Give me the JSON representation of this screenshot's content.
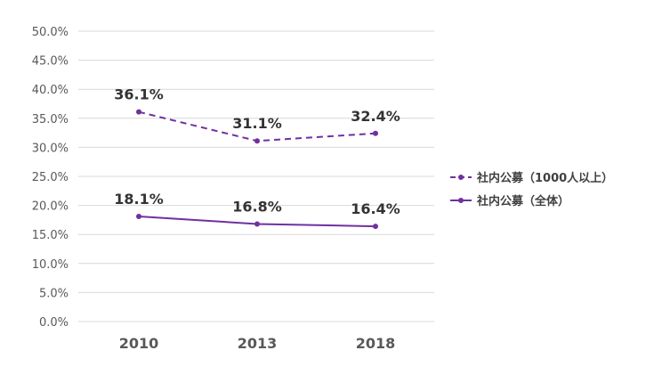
{
  "chart_data": {
    "type": "line",
    "categories": [
      "2010",
      "2013",
      "2018"
    ],
    "ylim": [
      0,
      50
    ],
    "yticks": [
      "0.0%",
      "5.0%",
      "10.0%",
      "15.0%",
      "20.0%",
      "25.0%",
      "30.0%",
      "35.0%",
      "40.0%",
      "45.0%",
      "50.0%"
    ],
    "grid": true,
    "legend_position": "right",
    "series": [
      {
        "name": "社内公募（1000人以上）",
        "values": [
          36.1,
          31.1,
          32.4
        ],
        "labels": [
          "36.1%",
          "31.1%",
          "32.4%"
        ],
        "style": "dashed",
        "color": "#7030a0"
      },
      {
        "name": "社内公募（全体）",
        "values": [
          18.1,
          16.8,
          16.4
        ],
        "labels": [
          "18.1%",
          "16.8%",
          "16.4%"
        ],
        "style": "solid",
        "color": "#7030a0"
      }
    ]
  }
}
